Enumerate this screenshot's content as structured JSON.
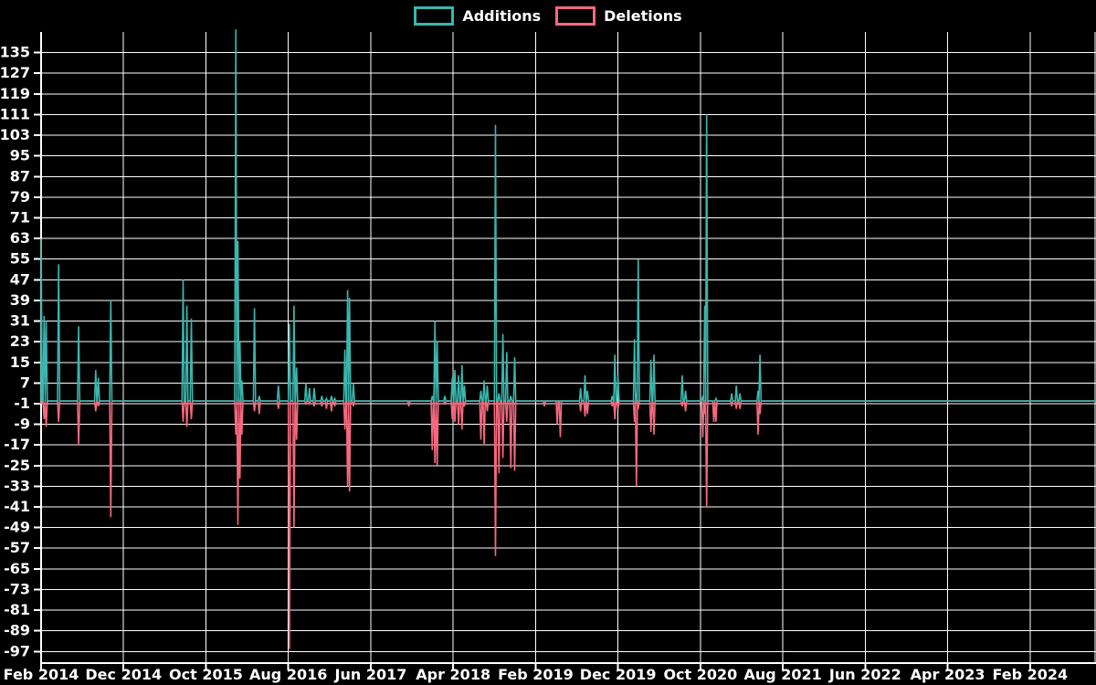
{
  "chart_data": {
    "type": "line",
    "title": "",
    "description": "Weekly additions and deletions spike chart, black background, white grid",
    "background_color": "#000000",
    "grid_color": "#ffffff",
    "text_color": "#ffffff",
    "x_axis": {
      "tick_labels": [
        "Feb 2014",
        "Dec 2014",
        "Oct 2015",
        "Aug 2016",
        "Jun 2017",
        "Apr 2018",
        "Feb 2019",
        "Dec 2019",
        "Oct 2020",
        "Aug 2021",
        "Jun 2022",
        "Apr 2023",
        "Feb 2024"
      ],
      "months_between_ticks": 10,
      "start": "2014-02-01",
      "total_months_visible": 128
    },
    "y_axis": {
      "tick_labels": [
        "135",
        "127",
        "119",
        "111",
        "103",
        "95",
        "87",
        "79",
        "71",
        "63",
        "55",
        "47",
        "39",
        "31",
        "23",
        "15",
        "7",
        "-1",
        "-9",
        "-17",
        "-25",
        "-33",
        "-41",
        "-49",
        "-57",
        "-65",
        "-73",
        "-81",
        "-89",
        "-97"
      ],
      "tick_step": 8,
      "ylim": [
        -101.5,
        143.0
      ]
    },
    "baseline_value": 0,
    "series": [
      {
        "name": "Additions",
        "color": "#3BB6AE",
        "value_index": 1
      },
      {
        "name": "Deletions",
        "color": "#F5697E",
        "value_index": 2
      }
    ],
    "events_note": "date, additions, deletions; all other weeks are 0 for both series",
    "events": [
      [
        "2014-02-01",
        63,
        -1
      ],
      [
        "2014-02-12",
        33,
        -7
      ],
      [
        "2014-02-20",
        31,
        -10
      ],
      [
        "2014-04-05",
        53,
        -8
      ],
      [
        "2014-06-18",
        29,
        -17
      ],
      [
        "2014-08-20",
        12,
        -4
      ],
      [
        "2014-08-30",
        9,
        -2
      ],
      [
        "2014-10-15",
        39,
        -45
      ],
      [
        "2015-07-08",
        47,
        -8
      ],
      [
        "2015-07-22",
        37,
        -10
      ],
      [
        "2015-08-08",
        32,
        -7
      ],
      [
        "2016-01-20",
        144,
        -13
      ],
      [
        "2016-01-28",
        62,
        -48
      ],
      [
        "2016-02-05",
        23,
        -30
      ],
      [
        "2016-02-12",
        8,
        -13
      ],
      [
        "2016-03-28",
        36,
        -4
      ],
      [
        "2016-04-15",
        2,
        -5
      ],
      [
        "2016-06-25",
        6,
        -3
      ],
      [
        "2016-08-05",
        30,
        -96
      ],
      [
        "2016-08-22",
        37,
        -49
      ],
      [
        "2016-09-01",
        13,
        -15
      ],
      [
        "2016-10-05",
        7,
        -1
      ],
      [
        "2016-10-18",
        5,
        -1
      ],
      [
        "2016-11-05",
        5,
        -2
      ],
      [
        "2016-12-03",
        2,
        -2
      ],
      [
        "2016-12-20",
        1,
        -3
      ],
      [
        "2017-01-08",
        2,
        -4
      ],
      [
        "2017-01-20",
        1,
        -2
      ],
      [
        "2017-02-27",
        20,
        -11
      ],
      [
        "2017-03-07",
        43,
        -33
      ],
      [
        "2017-03-14",
        40,
        -35
      ],
      [
        "2017-03-28",
        7,
        -2
      ],
      [
        "2017-10-20",
        0,
        -2
      ],
      [
        "2018-01-15",
        2,
        -19
      ],
      [
        "2018-01-25",
        31,
        -24
      ],
      [
        "2018-02-03",
        23,
        -25
      ],
      [
        "2018-03-01",
        2,
        -1
      ],
      [
        "2018-03-28",
        9,
        -7
      ],
      [
        "2018-04-07",
        12,
        -8
      ],
      [
        "2018-04-21",
        10,
        -9
      ],
      [
        "2018-05-03",
        14,
        -11
      ],
      [
        "2018-05-12",
        6,
        -2
      ],
      [
        "2018-07-12",
        4,
        -15
      ],
      [
        "2018-07-24",
        8,
        -17
      ],
      [
        "2018-08-05",
        6,
        -4
      ],
      [
        "2018-09-05",
        107,
        -60
      ],
      [
        "2018-09-18",
        3,
        -28
      ],
      [
        "2018-10-02",
        26,
        -22
      ],
      [
        "2018-10-16",
        19,
        -8
      ],
      [
        "2018-11-01",
        2,
        -26
      ],
      [
        "2018-11-15",
        17,
        -27
      ],
      [
        "2019-03-03",
        0,
        -2
      ],
      [
        "2019-04-20",
        0,
        -9
      ],
      [
        "2019-05-01",
        0,
        -14
      ],
      [
        "2019-07-15",
        5,
        -4
      ],
      [
        "2019-08-01",
        10,
        -6
      ],
      [
        "2019-08-10",
        4,
        -5
      ],
      [
        "2019-11-10",
        2,
        -2
      ],
      [
        "2019-11-20",
        18,
        -7
      ],
      [
        "2019-12-01",
        10,
        -3
      ],
      [
        "2020-02-01",
        24,
        -8
      ],
      [
        "2020-02-08",
        3,
        -33
      ],
      [
        "2020-02-15",
        55,
        -3
      ],
      [
        "2020-04-01",
        16,
        -12
      ],
      [
        "2020-04-12",
        18,
        -13
      ],
      [
        "2020-07-25",
        10,
        -2
      ],
      [
        "2020-08-07",
        4,
        -4
      ],
      [
        "2020-10-10",
        2,
        -14
      ],
      [
        "2020-10-17",
        37,
        -5
      ],
      [
        "2020-10-24",
        111,
        -41
      ],
      [
        "2020-11-20",
        0,
        -8
      ],
      [
        "2020-11-28",
        1,
        -8
      ],
      [
        "2021-01-25",
        3,
        -2
      ],
      [
        "2021-02-12",
        6,
        -3
      ],
      [
        "2021-02-25",
        3,
        -3
      ],
      [
        "2021-05-01",
        4,
        -13
      ],
      [
        "2021-05-08",
        18,
        -5
      ]
    ],
    "legend_position": "top-center",
    "grid": true
  }
}
